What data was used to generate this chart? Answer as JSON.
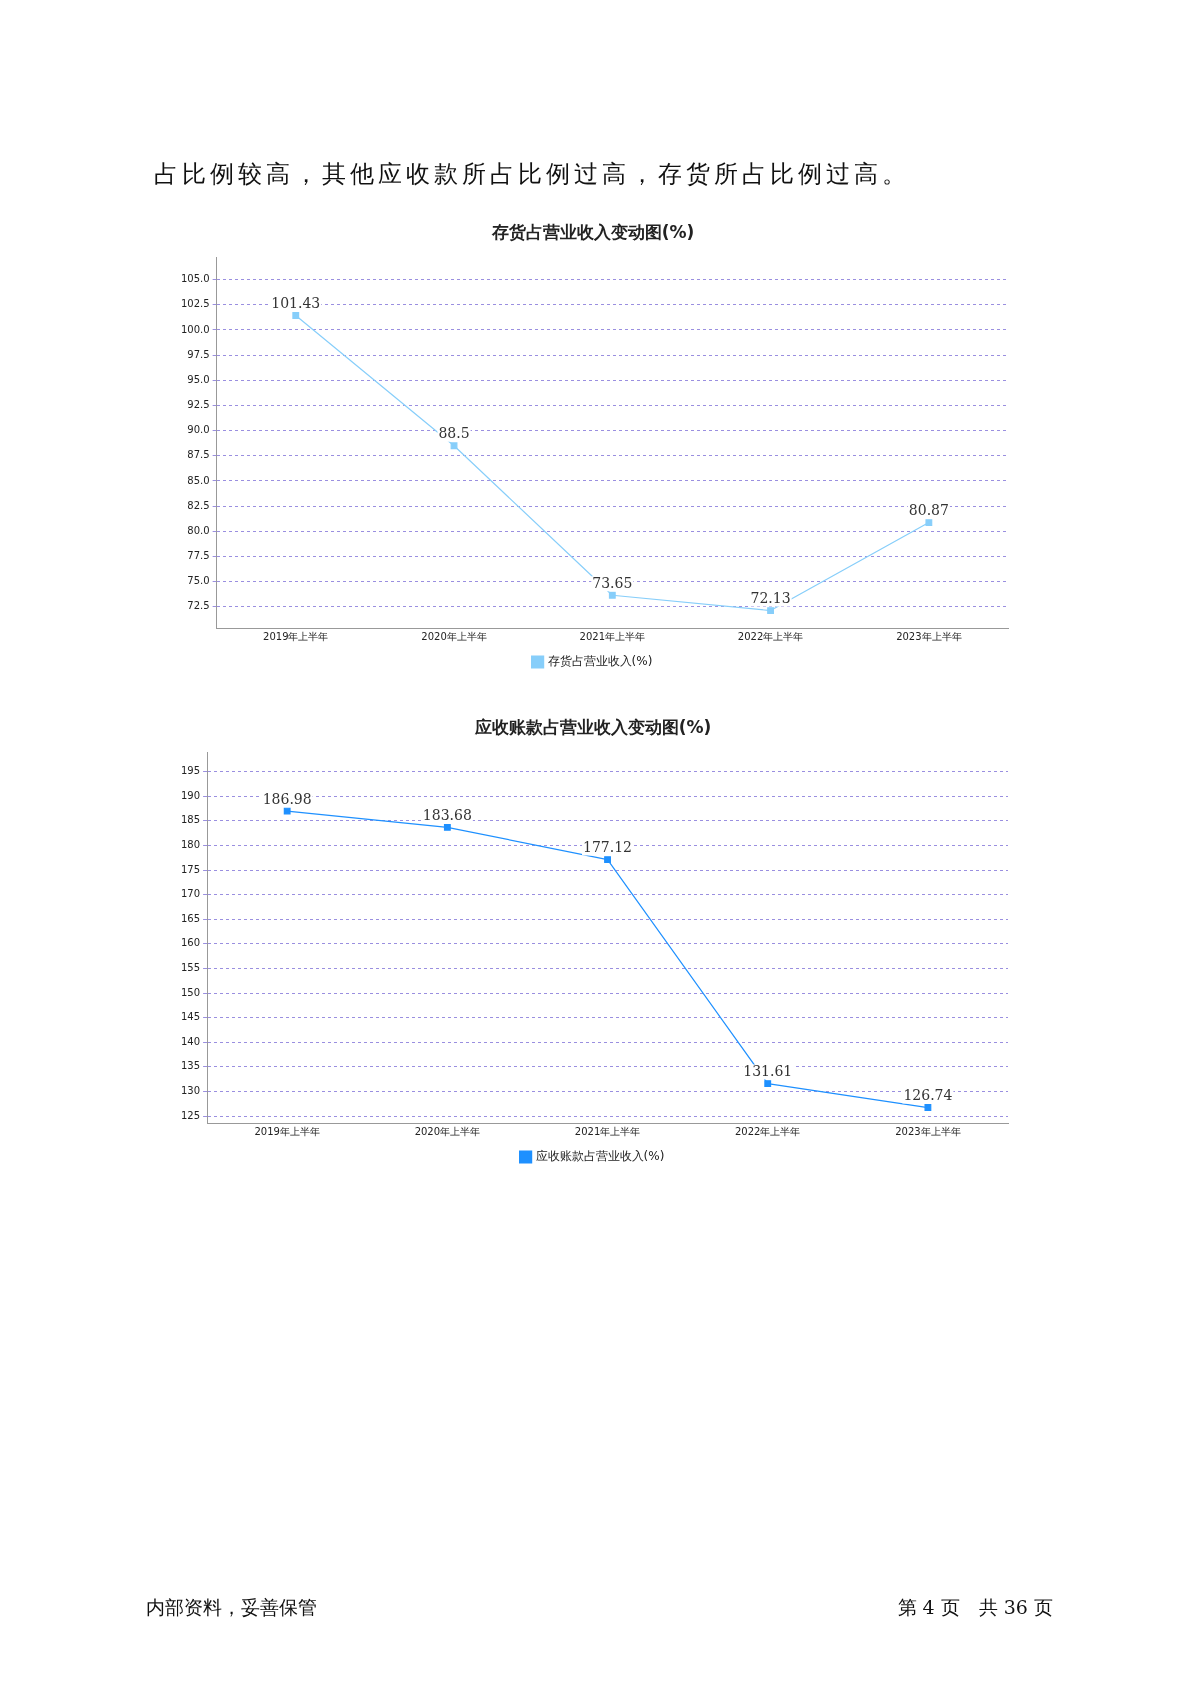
{
  "chart_data": [
    {
      "type": "line",
      "title": "存货占营业收入变动图(%)",
      "annotations": [
        "占比例较高，其他应收款所占比例过高，存货所占比例过高。"
      ],
      "categories": [
        "2019年上半年",
        "2020年上半年",
        "2021年上半年",
        "2022年上半年",
        "2023年上半年"
      ],
      "series": [
        {
          "name": "存货占营业收入(%)",
          "color": "#87cefa",
          "values": [
            101.43,
            88.5,
            73.65,
            72.13,
            80.87
          ]
        }
      ],
      "ylim": [
        70.4,
        107.2
      ],
      "yticks": [
        {
          "value": 72.5,
          "label": "72.5"
        },
        {
          "value": 75,
          "label": "75.0"
        },
        {
          "value": 77.5,
          "label": "77.5"
        },
        {
          "value": 80,
          "label": "80.0"
        },
        {
          "value": 82.5,
          "label": "82.5"
        },
        {
          "value": 85,
          "label": "85.0"
        },
        {
          "value": 87.5,
          "label": "87.5"
        },
        {
          "value": 90,
          "label": "90.0"
        },
        {
          "value": 92.5,
          "label": "92.5"
        },
        {
          "value": 95,
          "label": "95.0"
        },
        {
          "value": 97.5,
          "label": "97.5"
        },
        {
          "value": 100,
          "label": "100.0"
        },
        {
          "value": 102.5,
          "label": "102.5"
        },
        {
          "value": 105,
          "label": "105.0"
        }
      ],
      "grid": "y",
      "legend": "bottom",
      "marker": "square",
      "line_style": "solid",
      "data_labels": true
    },
    {
      "type": "line",
      "title": "应收账款占营业收入变动图(%)",
      "annotations": [
        "内部资料，妥善保管",
        "第 4 页　共 36 页"
      ],
      "categories": [
        "2019年上半年",
        "2020年上半年",
        "2021年上半年",
        "2022年上半年",
        "2023年上半年"
      ],
      "series": [
        {
          "name": "应收账款占营业收入(%)",
          "color": "#1e90ff",
          "values": [
            186.98,
            183.68,
            177.12,
            131.61,
            126.74
          ]
        }
      ],
      "ylim": [
        123.6,
        198.9
      ],
      "yticks": [
        125,
        130,
        135,
        140,
        145,
        150,
        155,
        160,
        165,
        170,
        175,
        180,
        185,
        190,
        195
      ],
      "grid": "y",
      "legend": "bottom",
      "marker": "square",
      "line_style": "solid",
      "data_labels": true
    }
  ]
}
